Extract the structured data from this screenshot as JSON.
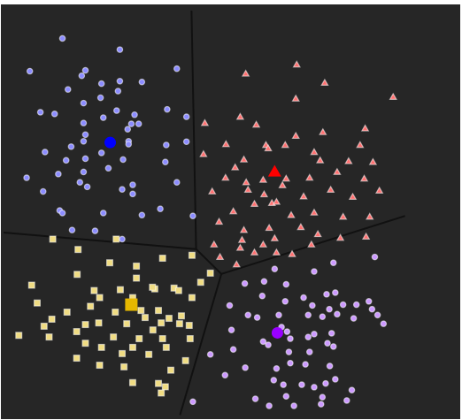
{
  "chart_data": {
    "type": "scatter",
    "title": "",
    "xlabel": "",
    "ylabel": "",
    "xlim": [
      0,
      100
    ],
    "ylim": [
      0,
      100
    ],
    "grid": false,
    "legend": "none",
    "background": "#262626",
    "boundary_color": "#111111",
    "boundaries": [
      {
        "name": "boundary-top",
        "x": [
          41.5,
          42.5
        ],
        "y": [
          98.5,
          41.0
        ]
      },
      {
        "name": "boundary-left",
        "x": [
          0.6,
          42.5
        ],
        "y": [
          45.0,
          41.0
        ]
      },
      {
        "name": "boundary-mid",
        "x": [
          42.5,
          48.0
        ],
        "y": [
          41.0,
          35.0
        ]
      },
      {
        "name": "boundary-right",
        "x": [
          48.0,
          88.0
        ],
        "y": [
          35.0,
          49.0
        ]
      },
      {
        "name": "boundary-bottom",
        "x": [
          48.0,
          39.0
        ],
        "y": [
          35.0,
          1.0
        ]
      }
    ],
    "clusters": [
      {
        "name": "",
        "color": "#8c8cff",
        "centroid_color": "#0000ff",
        "marker": "circle",
        "centroid": [
          23.8,
          66.7
        ],
        "points": [
          [
            13.4,
            91.8
          ],
          [
            17.6,
            82.8
          ],
          [
            18.4,
            84.1
          ],
          [
            25.9,
            89.1
          ],
          [
            6.3,
            83.9
          ],
          [
            14.6,
            79.5
          ],
          [
            21.9,
            80.9
          ],
          [
            25.9,
            81.5
          ],
          [
            30.7,
            81.3
          ],
          [
            38.3,
            84.5
          ],
          [
            18.0,
            76.2
          ],
          [
            21.7,
            77.5
          ],
          [
            25.2,
            74.4
          ],
          [
            25.5,
            79.1
          ],
          [
            36.2,
            74.7
          ],
          [
            40.4,
            72.9
          ],
          [
            8.6,
            74.0
          ],
          [
            11.7,
            73.6
          ],
          [
            18.0,
            71.4
          ],
          [
            22.3,
            72.7
          ],
          [
            28.4,
            71.2
          ],
          [
            29.1,
            73.4
          ],
          [
            27.6,
            69.9
          ],
          [
            30.0,
            71.2
          ],
          [
            18.0,
            67.0
          ],
          [
            18.4,
            68.6
          ],
          [
            15.3,
            65.7
          ],
          [
            27.8,
            67.0
          ],
          [
            36.0,
            66.1
          ],
          [
            40.4,
            66.9
          ],
          [
            9.6,
            64.4
          ],
          [
            14.2,
            62.4
          ],
          [
            18.4,
            62.8
          ],
          [
            21.9,
            64.2
          ],
          [
            27.8,
            66.3
          ],
          [
            26.6,
            62.6
          ],
          [
            35.8,
            62.0
          ],
          [
            5.6,
            58.2
          ],
          [
            12.5,
            59.1
          ],
          [
            18.0,
            59.6
          ],
          [
            23.4,
            60.5
          ],
          [
            38.3,
            57.1
          ],
          [
            9.2,
            54.9
          ],
          [
            17.2,
            57.1
          ],
          [
            18.8,
            56.0
          ],
          [
            26.4,
            55.4
          ],
          [
            28.7,
            54.3
          ],
          [
            28.7,
            56.5
          ],
          [
            12.8,
            50.3
          ],
          [
            13.4,
            49.7
          ],
          [
            22.3,
            49.7
          ],
          [
            30.7,
            49.2
          ],
          [
            34.7,
            50.7
          ],
          [
            41.8,
            49.0
          ],
          [
            15.5,
            45.6
          ],
          [
            20.5,
            45.4
          ],
          [
            26.4,
            43.4
          ]
        ]
      },
      {
        "name": "",
        "color": "#ff7070",
        "centroid_color": "#ff0000",
        "marker": "triangle",
        "centroid": [
          59.6,
          59.7
        ],
        "points": [
          [
            64.4,
            85.5
          ],
          [
            53.3,
            83.3
          ],
          [
            70.5,
            81.1
          ],
          [
            64.2,
            77.3
          ],
          [
            85.4,
            77.7
          ],
          [
            52.1,
            72.9
          ],
          [
            44.4,
            71.4
          ],
          [
            55.6,
            71.0
          ],
          [
            64.2,
            68.3
          ],
          [
            70.1,
            69.2
          ],
          [
            79.3,
            70.1
          ],
          [
            78.2,
            66.1
          ],
          [
            49.0,
            66.3
          ],
          [
            57.7,
            66.1
          ],
          [
            52.9,
            62.6
          ],
          [
            58.2,
            65.3
          ],
          [
            44.1,
            63.9
          ],
          [
            61.9,
            66.1
          ],
          [
            68.2,
            64.4
          ],
          [
            69.5,
            62.4
          ],
          [
            75.7,
            62.2
          ],
          [
            81.0,
            62.0
          ],
          [
            51.0,
            60.7
          ],
          [
            48.9,
            58.2
          ],
          [
            53.4,
            57.1
          ],
          [
            57.1,
            57.7
          ],
          [
            62.1,
            58.0
          ],
          [
            67.2,
            58.2
          ],
          [
            73.2,
            59.6
          ],
          [
            79.1,
            58.0
          ],
          [
            53.8,
            55.3
          ],
          [
            57.3,
            54.2
          ],
          [
            59.0,
            52.1
          ],
          [
            61.3,
            56.4
          ],
          [
            65.9,
            53.7
          ],
          [
            71.8,
            55.3
          ],
          [
            76.6,
            53.6
          ],
          [
            82.4,
            55.1
          ],
          [
            46.0,
            54.9
          ],
          [
            50.6,
            50.1
          ],
          [
            55.2,
            51.9
          ],
          [
            60.0,
            52.4
          ],
          [
            63.2,
            49.2
          ],
          [
            68.2,
            49.8
          ],
          [
            74.5,
            48.8
          ],
          [
            80.3,
            48.8
          ],
          [
            47.5,
            47.6
          ],
          [
            52.9,
            45.6
          ],
          [
            58.4,
            46.1
          ],
          [
            65.3,
            46.3
          ],
          [
            69.0,
            44.6
          ],
          [
            73.9,
            43.7
          ],
          [
            79.5,
            44.0
          ],
          [
            46.4,
            42.1
          ],
          [
            52.5,
            43.2
          ],
          [
            57.1,
            42.1
          ],
          [
            59.6,
            43.6
          ],
          [
            67.6,
            42.1
          ],
          [
            60.0,
            40.2
          ],
          [
            47.7,
            39.1
          ],
          [
            51.3,
            37.3
          ],
          [
            55.2,
            40.2
          ],
          [
            52.1,
            41.3
          ],
          [
            63.4,
            39.8
          ]
        ]
      },
      {
        "name": "",
        "color": "#f0dc82",
        "centroid_color": "#e6b800",
        "marker": "square",
        "centroid": [
          28.4,
          27.6
        ],
        "points": [
          [
            11.3,
            43.4
          ],
          [
            25.1,
            43.4
          ],
          [
            16.8,
            40.9
          ],
          [
            23.7,
            37.7
          ],
          [
            29.5,
            36.9
          ],
          [
            35.2,
            38.8
          ],
          [
            41.6,
            39.5
          ],
          [
            45.6,
            35.2
          ],
          [
            16.6,
            34.9
          ],
          [
            29.5,
            34.0
          ],
          [
            33.5,
            31.4
          ],
          [
            37.7,
            31.6
          ],
          [
            43.5,
            33.0
          ],
          [
            6.7,
            32.3
          ],
          [
            20.3,
            31.0
          ],
          [
            21.5,
            29.3
          ],
          [
            26.0,
            31.2
          ],
          [
            28.7,
            29.3
          ],
          [
            33.0,
            31.8
          ],
          [
            38.7,
            31.0
          ],
          [
            41.6,
            29.3
          ],
          [
            7.9,
            28.0
          ],
          [
            19.5,
            27.2
          ],
          [
            14.4,
            25.8
          ],
          [
            24.9,
            25.8
          ],
          [
            30.5,
            26.2
          ],
          [
            34.3,
            26.2
          ],
          [
            39.3,
            24.9
          ],
          [
            31.4,
            24.5
          ],
          [
            36.6,
            24.3
          ],
          [
            18.4,
            22.8
          ],
          [
            21.3,
            23.2
          ],
          [
            27.4,
            23.0
          ],
          [
            33.1,
            21.5
          ],
          [
            34.9,
            23.2
          ],
          [
            38.9,
            23.0
          ],
          [
            41.0,
            22.6
          ],
          [
            9.4,
            22.4
          ],
          [
            11.1,
            24.1
          ],
          [
            16.5,
            21.1
          ],
          [
            24.5,
            19.8
          ],
          [
            30.1,
            19.4
          ],
          [
            35.2,
            19.4
          ],
          [
            41.2,
            19.4
          ],
          [
            3.9,
            20.2
          ],
          [
            10.5,
            19.8
          ],
          [
            18.4,
            18.3
          ],
          [
            21.9,
            17.3
          ],
          [
            28.7,
            17.3
          ],
          [
            36.0,
            17.3
          ],
          [
            26.4,
            15.8
          ],
          [
            32.2,
            15.6
          ],
          [
            40.2,
            14.1
          ],
          [
            16.5,
            14.7
          ],
          [
            21.5,
            13.0
          ],
          [
            26.8,
            12.6
          ],
          [
            37.0,
            11.8
          ],
          [
            28.7,
            8.8
          ],
          [
            34.3,
            8.6
          ],
          [
            35.8,
            7.8
          ],
          [
            34.9,
            6.3
          ]
        ]
      },
      {
        "name": "",
        "color": "#cc99ff",
        "centroid_color": "#9900ff",
        "marker": "circle",
        "centroid": [
          60.2,
          20.8
        ],
        "points": [
          [
            72.4,
            37.7
          ],
          [
            81.4,
            39.1
          ],
          [
            59.6,
            36.2
          ],
          [
            68.2,
            35.6
          ],
          [
            53.1,
            32.7
          ],
          [
            57.3,
            33.2
          ],
          [
            62.1,
            32.5
          ],
          [
            56.9,
            29.7
          ],
          [
            65.9,
            29.3
          ],
          [
            70.9,
            30.1
          ],
          [
            72.8,
            30.5
          ],
          [
            61.9,
            28.4
          ],
          [
            49.8,
            27.4
          ],
          [
            67.8,
            27.4
          ],
          [
            71.5,
            26.5
          ],
          [
            74.5,
            27.6
          ],
          [
            77.4,
            27.6
          ],
          [
            80.1,
            28.4
          ],
          [
            80.8,
            26.5
          ],
          [
            82.0,
            25.1
          ],
          [
            53.8,
            25.1
          ],
          [
            55.8,
            24.5
          ],
          [
            60.5,
            25.1
          ],
          [
            66.9,
            25.1
          ],
          [
            70.0,
            24.7
          ],
          [
            73.2,
            25.3
          ],
          [
            76.8,
            24.3
          ],
          [
            83.3,
            23.0
          ],
          [
            50.2,
            21.5
          ],
          [
            61.1,
            22.2
          ],
          [
            62.3,
            21.1
          ],
          [
            68.2,
            20.5
          ],
          [
            72.0,
            20.7
          ],
          [
            57.1,
            18.7
          ],
          [
            63.0,
            19.4
          ],
          [
            66.9,
            19.8
          ],
          [
            71.1,
            18.3
          ],
          [
            50.6,
            16.8
          ],
          [
            58.2,
            17.9
          ],
          [
            62.7,
            16.2
          ],
          [
            67.2,
            16.2
          ],
          [
            72.4,
            17.5
          ],
          [
            45.6,
            15.6
          ],
          [
            53.2,
            12.4
          ],
          [
            60.0,
            12.2
          ],
          [
            63.0,
            13.5
          ],
          [
            66.3,
            13.2
          ],
          [
            71.6,
            12.8
          ],
          [
            48.8,
            10.6
          ],
          [
            59.4,
            9.4
          ],
          [
            61.5,
            8.3
          ],
          [
            65.5,
            8.3
          ],
          [
            68.2,
            7.7
          ],
          [
            70.7,
            8.6
          ],
          [
            72.8,
            9.6
          ],
          [
            76.4,
            7.0
          ],
          [
            70.0,
            5.3
          ],
          [
            62.1,
            5.5
          ],
          [
            55.4,
            4.9
          ],
          [
            75.3,
            4.5
          ],
          [
            41.8,
            4.2
          ],
          [
            58.4,
            3.2
          ],
          [
            63.8,
            3.2
          ],
          [
            69.7,
            3.6
          ]
        ]
      }
    ]
  }
}
